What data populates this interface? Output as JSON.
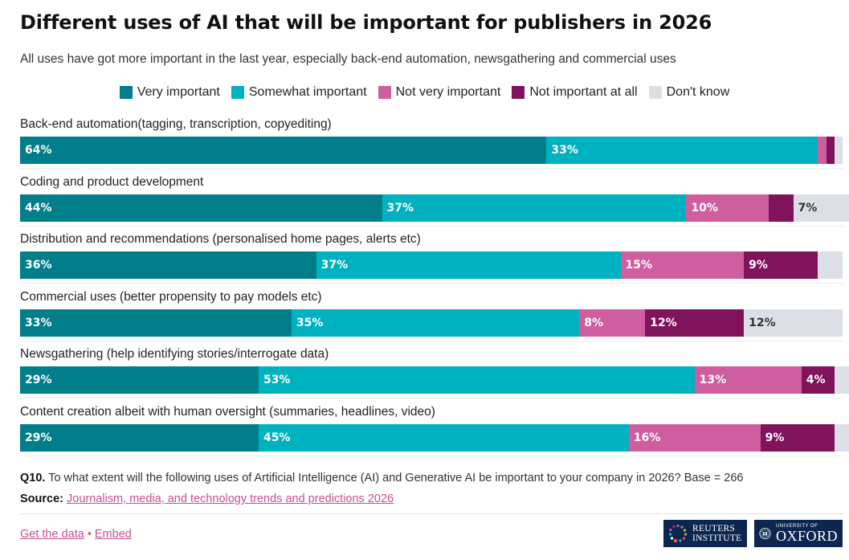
{
  "header": {
    "title": "Different uses of AI that will be important for publishers in 2026",
    "subtitle": "All uses have got more important in the last year, especially back-end automation, newsgathering and commercial uses"
  },
  "colors": {
    "very_important": "#007e8a",
    "somewhat_important": "#00b1bf",
    "not_very_important": "#cf5e9e",
    "not_important_at_all": "#80135c",
    "dont_know": "#dce0e6"
  },
  "chart_data": {
    "type": "bar",
    "orientation": "horizontal",
    "stacked": true,
    "title": "Different uses of AI that will be important for publishers in 2026",
    "subtitle": "All uses have got more important in the last year, especially back-end automation, newsgathering and commercial uses",
    "xlabel": "",
    "ylabel": "",
    "xlim": [
      0,
      100
    ],
    "legend_position": "top-center",
    "grid": false,
    "categories": [
      "Back-end automation(tagging, transcription, copyediting)",
      "Coding and product development",
      "Distribution and recommendations (personalised home pages, alerts etc)",
      "Commercial uses (better propensity to pay models etc)",
      "Newsgathering (help identifying stories/interrogate data)",
      "Content creation albeit with human oversight (summaries, headlines, video)"
    ],
    "series": [
      {
        "name": "Very important",
        "key": "very_important",
        "values": [
          64,
          44,
          36,
          33,
          29,
          29
        ],
        "labels": [
          "64%",
          "44%",
          "36%",
          "33%",
          "29%",
          "29%"
        ]
      },
      {
        "name": "Somewhat important",
        "key": "somewhat_important",
        "values": [
          33,
          37,
          37,
          35,
          53,
          45
        ],
        "labels": [
          "33%",
          "37%",
          "37%",
          "35%",
          "53%",
          "45%"
        ]
      },
      {
        "name": "Not very important",
        "key": "not_very_important",
        "values": [
          1,
          10,
          15,
          8,
          13,
          16
        ],
        "labels": [
          "",
          "10%",
          "15%",
          "8%",
          "13%",
          "16%"
        ]
      },
      {
        "name": "Not important at all",
        "key": "not_important_at_all",
        "values": [
          1,
          3,
          9,
          12,
          4,
          9
        ],
        "labels": [
          "",
          "",
          "9%",
          "12%",
          "4%",
          "9%"
        ]
      },
      {
        "name": "Don't know",
        "key": "dont_know",
        "values": [
          1,
          7,
          3,
          12,
          2,
          2
        ],
        "labels": [
          "",
          "7%",
          "",
          "12%",
          "",
          ""
        ]
      }
    ]
  },
  "footer": {
    "note_label": "Q10.",
    "note_text": "To what extent will the following uses of Artificial Intelligence (AI) and Generative AI be important to your company in 2026? Base = 266",
    "source_label": "Source:",
    "source_link": "Journalism, media, and technology trends and predictions 2026",
    "get_data": "Get the data",
    "separator": "•",
    "embed": "Embed",
    "logo_reuters_line1": "REUTERS",
    "logo_reuters_line2": "INSTITUTE",
    "logo_oxford_small": "UNIVERSITY OF",
    "logo_oxford_big": "OXFORD"
  }
}
